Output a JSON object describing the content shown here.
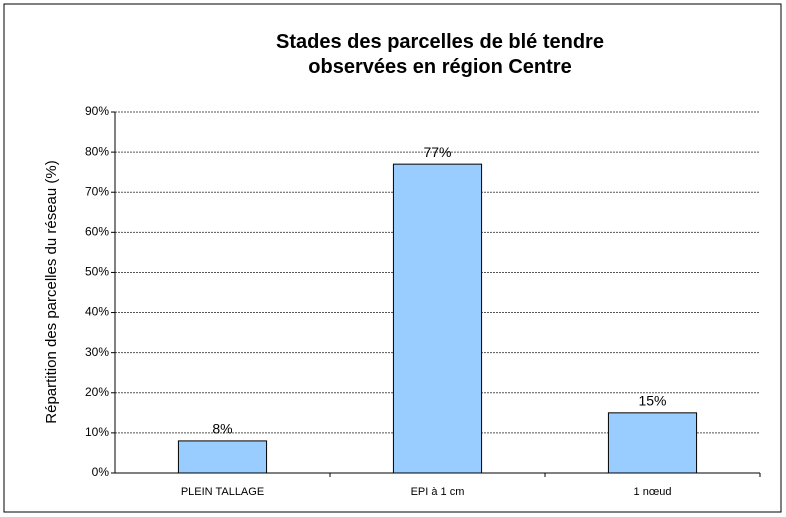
{
  "chart_data": {
    "type": "bar",
    "title": "Stades des parcelles de blé tendre observées en région Centre",
    "y_label": "Répartition des parcelles du réseau (%)",
    "categories": [
      "PLEIN TALLAGE",
      "EPI à 1 cm",
      "1 nœud"
    ],
    "values": [
      8,
      77,
      15
    ],
    "value_labels": [
      "8%",
      "77%",
      "15%"
    ],
    "color": "#99ccff",
    "ylim": [
      0,
      90
    ],
    "yticks": [
      {
        "value": 0,
        "label": "0%"
      },
      {
        "value": 10,
        "label": "10%"
      },
      {
        "value": 20,
        "label": "20%"
      },
      {
        "value": 30,
        "label": "30%"
      },
      {
        "value": 40,
        "label": "40%"
      },
      {
        "value": 50,
        "label": "50%"
      },
      {
        "value": 60,
        "label": "60%"
      },
      {
        "value": 70,
        "label": "70%"
      },
      {
        "value": 80,
        "label": "80%"
      },
      {
        "value": 90,
        "label": "90%"
      }
    ],
    "grid": true
  }
}
